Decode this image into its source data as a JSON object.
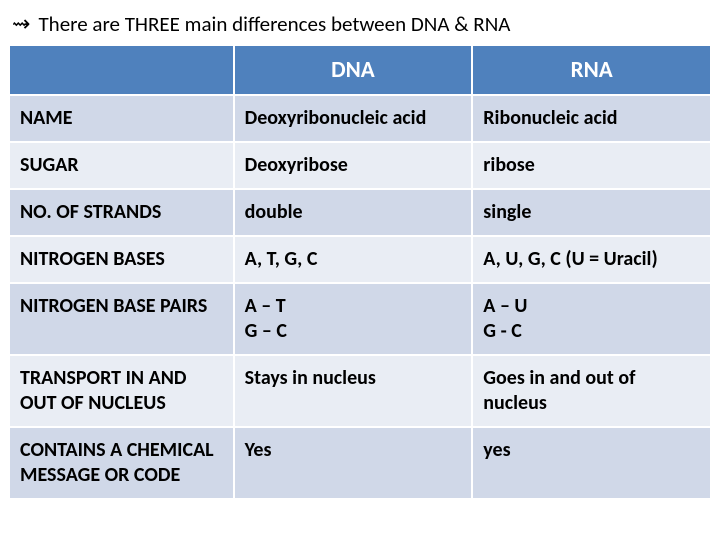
{
  "heading": {
    "bullet": "⇝",
    "text": "There are THREE main differences between DNA & RNA"
  },
  "table": {
    "header_bg": "#4f81bd",
    "band_a_bg": "#d0d8e8",
    "band_b_bg": "#e9edf4",
    "headers": {
      "c1": "DNA",
      "c2": "RNA"
    },
    "rows": [
      {
        "label": "NAME",
        "dna": "Deoxyribonucleic acid",
        "rna": "Ribonucleic acid"
      },
      {
        "label": "SUGAR",
        "dna": "Deoxyribose",
        "rna": "ribose"
      },
      {
        "label": "NO. OF STRANDS",
        "dna": "double",
        "rna": "single"
      },
      {
        "label": "NITROGEN BASES",
        "dna": "A, T, G, C",
        "rna": "A, U, G, C   (U = Uracil)"
      },
      {
        "label": "NITROGEN BASE PAIRS",
        "dna": "A – T\nG – C",
        "rna": "A – U\nG - C"
      },
      {
        "label": "TRANSPORT IN AND OUT OF NUCLEUS",
        "dna": "Stays in nucleus",
        "rna": "Goes in and out of nucleus"
      },
      {
        "label": "CONTAINS A CHEMICAL MESSAGE OR CODE",
        "dna": "Yes",
        "rna": "yes"
      }
    ]
  }
}
